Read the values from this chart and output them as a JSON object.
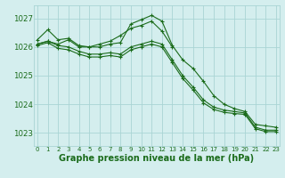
{
  "background_color": "#d4eeee",
  "grid_color": "#aad4d4",
  "line_color": "#1a6b1a",
  "xlabel": "Graphe pression niveau de la mer (hPa)",
  "xlabel_fontsize": 7.0,
  "xlabel_color": "#1a6b1a",
  "xticks": [
    0,
    1,
    2,
    3,
    4,
    5,
    6,
    7,
    8,
    9,
    10,
    11,
    12,
    13,
    14,
    15,
    16,
    17,
    18,
    19,
    20,
    21,
    22,
    23
  ],
  "yticks": [
    1023,
    1024,
    1025,
    1026,
    1027
  ],
  "ylim": [
    1022.55,
    1027.45
  ],
  "xlim": [
    -0.3,
    23.3
  ],
  "line1_x": [
    0,
    1,
    2,
    3,
    4,
    5,
    6,
    7,
    8,
    9,
    10,
    11,
    12,
    13,
    14,
    15,
    16,
    17,
    18,
    19,
    20,
    21,
    22,
    23
  ],
  "line1_y": [
    1026.25,
    1026.6,
    1026.25,
    1026.3,
    1026.05,
    1026.0,
    1026.0,
    1026.1,
    1026.15,
    1026.8,
    1026.95,
    1027.1,
    1026.9,
    1026.05,
    1025.55,
    1025.25,
    1024.8,
    1024.3,
    1024.0,
    1023.85,
    1023.75,
    1023.3,
    1023.25,
    1023.2
  ],
  "line2_x": [
    0,
    1,
    2,
    3,
    4,
    5,
    6,
    7,
    8,
    9,
    10,
    11,
    12,
    13,
    14,
    15,
    16,
    17,
    18,
    19,
    20,
    21,
    22,
    23
  ],
  "line2_y": [
    1026.1,
    1026.2,
    1026.05,
    1026.0,
    1025.85,
    1025.75,
    1025.75,
    1025.8,
    1025.75,
    1026.0,
    1026.1,
    1026.2,
    1026.1,
    1025.55,
    1025.0,
    1024.6,
    1024.15,
    1023.9,
    1023.8,
    1023.75,
    1023.7,
    1023.2,
    1023.1,
    1023.1
  ],
  "line3_x": [
    0,
    1,
    2,
    3,
    4,
    5,
    6,
    7,
    8,
    9,
    10,
    11,
    12,
    13,
    14,
    15,
    16,
    17,
    18,
    19,
    20,
    21,
    22,
    23
  ],
  "line3_y": [
    1026.05,
    1026.15,
    1025.95,
    1025.9,
    1025.75,
    1025.65,
    1025.65,
    1025.7,
    1025.65,
    1025.9,
    1026.0,
    1026.1,
    1026.0,
    1025.45,
    1024.9,
    1024.5,
    1024.05,
    1023.82,
    1023.72,
    1023.68,
    1023.65,
    1023.15,
    1023.05,
    1023.05
  ],
  "line4_x": [
    0,
    1,
    2,
    3,
    4,
    5,
    6,
    7,
    8,
    9,
    10,
    11,
    12,
    13
  ],
  "line4_y": [
    1026.1,
    1026.2,
    1026.1,
    1026.25,
    1026.0,
    1026.0,
    1026.1,
    1026.2,
    1026.4,
    1026.65,
    1026.75,
    1026.9,
    1026.55,
    1026.0
  ]
}
